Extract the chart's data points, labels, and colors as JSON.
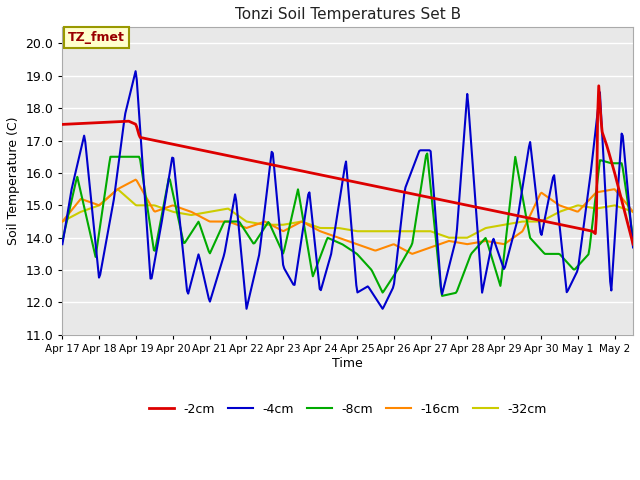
{
  "title": "Tonzi Soil Temperatures Set B",
  "xlabel": "Time",
  "ylabel": "Soil Temperature (C)",
  "ylim": [
    11.0,
    20.5
  ],
  "yticks": [
    11.0,
    12.0,
    13.0,
    14.0,
    15.0,
    16.0,
    17.0,
    18.0,
    19.0,
    20.0
  ],
  "facecolor": "#ffffff",
  "plot_bg": "#e8e8e8",
  "annotation_label": "TZ_fmet",
  "annotation_color": "#990000",
  "annotation_bg": "#ffffcc",
  "annotation_border": "#999900",
  "series_colors": {
    "-2cm": "#dd0000",
    "-4cm": "#0000cc",
    "-8cm": "#00aa00",
    "-16cm": "#ff8800",
    "-32cm": "#cccc00"
  },
  "x_labels": [
    "Apr 17",
    "Apr 18",
    "Apr 19",
    "Apr 20",
    "Apr 21",
    "Apr 22",
    "Apr 23",
    "Apr 24",
    "Apr 25",
    "Apr 26",
    "Apr 27",
    "Apr 28",
    "Apr 29",
    "Apr 30",
    "May 1",
    "May 2"
  ],
  "grid_color": "#cccccc",
  "grid_alpha": 1.0,
  "lw_thick": 1.5,
  "lw_2cm": 2.0
}
